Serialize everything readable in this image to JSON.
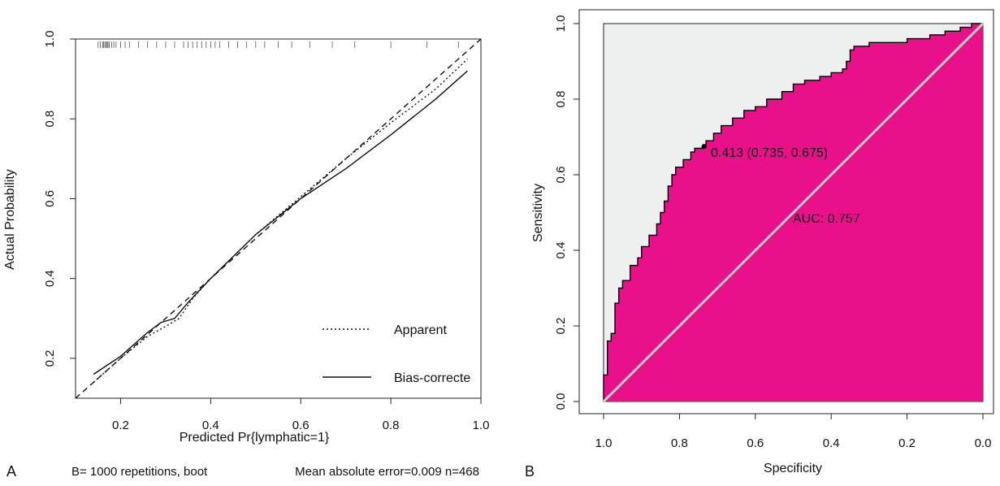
{
  "chart_data": [
    {
      "panel_label": "A",
      "type": "line",
      "xlabel": "Predicted Pr{lymphatic=1}",
      "ylabel": "Actual Probability",
      "footer_left": "B= 1000 repetitions, boot",
      "footer_right": "Mean absolute error=0.009 n=468",
      "xlim": [
        0.1,
        1.0
      ],
      "ylim": [
        0.1,
        1.0
      ],
      "x_ticks": [
        "0.2",
        "0.4",
        "0.6",
        "0.8",
        "1.0"
      ],
      "y_ticks": [
        "0.2",
        "0.4",
        "0.6",
        "0.8",
        "1.0"
      ],
      "grid": false,
      "legend_position": "bottom-right",
      "series": [
        {
          "name": "Apparent",
          "style": "dotted",
          "x": [
            0.14,
            0.2,
            0.26,
            0.3,
            0.33,
            0.36,
            0.4,
            0.5,
            0.6,
            0.7,
            0.8,
            0.9,
            0.97
          ],
          "y": [
            0.14,
            0.2,
            0.255,
            0.28,
            0.3,
            0.35,
            0.4,
            0.51,
            0.605,
            0.7,
            0.79,
            0.875,
            0.95
          ]
        },
        {
          "name": "Bias-correcte",
          "style": "solid",
          "x": [
            0.14,
            0.2,
            0.26,
            0.29,
            0.32,
            0.35,
            0.4,
            0.5,
            0.6,
            0.7,
            0.8,
            0.9,
            0.97
          ],
          "y": [
            0.16,
            0.205,
            0.265,
            0.29,
            0.3,
            0.34,
            0.4,
            0.51,
            0.6,
            0.675,
            0.76,
            0.85,
            0.92
          ]
        },
        {
          "name": "",
          "style": "dashed",
          "x": [
            0.1,
            1.0
          ],
          "y": [
            0.1,
            1.0
          ]
        }
      ],
      "rug_x": [
        0.15,
        0.155,
        0.16,
        0.162,
        0.165,
        0.168,
        0.17,
        0.172,
        0.175,
        0.18,
        0.185,
        0.19,
        0.2,
        0.21,
        0.22,
        0.24,
        0.26,
        0.28,
        0.3,
        0.32,
        0.34,
        0.35,
        0.36,
        0.37,
        0.38,
        0.39,
        0.4,
        0.41,
        0.42,
        0.44,
        0.46,
        0.48,
        0.5,
        0.52,
        0.55,
        0.58,
        0.62,
        0.67,
        0.72,
        0.8,
        0.88,
        0.95
      ]
    },
    {
      "panel_label": "B",
      "type": "line",
      "xlabel": "Specificity",
      "ylabel": "Sensitivity",
      "xlim": [
        1.0,
        0.0
      ],
      "ylim": [
        0.0,
        1.0
      ],
      "x_ticks": [
        "1.0",
        "0.8",
        "0.6",
        "0.4",
        "0.2",
        "0.0"
      ],
      "y_ticks": [
        "0.0",
        "0.2",
        "0.4",
        "0.6",
        "0.8",
        "1.0"
      ],
      "grid": false,
      "annotations": {
        "auc": "AUC: 0.757",
        "threshold": "0.413 (0.735, 0.675)"
      },
      "threshold_point": {
        "specificity": 0.735,
        "sensitivity": 0.675
      },
      "colors": {
        "auc_fill": "#e8118a",
        "panel_fill": "#eef0f0",
        "diagonal": "#cccccc"
      },
      "series": [
        {
          "name": "",
          "specificity": [
            1.0,
            1.0,
            0.99,
            0.99,
            0.98,
            0.98,
            0.97,
            0.97,
            0.96,
            0.96,
            0.95,
            0.95,
            0.93,
            0.93,
            0.91,
            0.91,
            0.9,
            0.9,
            0.88,
            0.88,
            0.86,
            0.86,
            0.85,
            0.85,
            0.84,
            0.84,
            0.83,
            0.83,
            0.82,
            0.82,
            0.81,
            0.81,
            0.79,
            0.79,
            0.77,
            0.77,
            0.76,
            0.76,
            0.74,
            0.74,
            0.73,
            0.73,
            0.71,
            0.71,
            0.69,
            0.69,
            0.66,
            0.66,
            0.63,
            0.63,
            0.6,
            0.6,
            0.57,
            0.57,
            0.53,
            0.53,
            0.5,
            0.5,
            0.47,
            0.47,
            0.43,
            0.43,
            0.4,
            0.4,
            0.37,
            0.37,
            0.36,
            0.36,
            0.35,
            0.35,
            0.34,
            0.34,
            0.3,
            0.3,
            0.2,
            0.2,
            0.14,
            0.14,
            0.1,
            0.1,
            0.06,
            0.06,
            0.03,
            0.03,
            0.0
          ],
          "sensitivity": [
            0.0,
            0.07,
            0.07,
            0.16,
            0.16,
            0.18,
            0.18,
            0.26,
            0.26,
            0.3,
            0.3,
            0.32,
            0.32,
            0.36,
            0.36,
            0.38,
            0.38,
            0.41,
            0.41,
            0.44,
            0.44,
            0.47,
            0.47,
            0.5,
            0.5,
            0.53,
            0.53,
            0.57,
            0.57,
            0.6,
            0.6,
            0.62,
            0.62,
            0.64,
            0.64,
            0.66,
            0.66,
            0.67,
            0.67,
            0.675,
            0.675,
            0.69,
            0.69,
            0.71,
            0.71,
            0.73,
            0.73,
            0.75,
            0.75,
            0.77,
            0.77,
            0.78,
            0.78,
            0.8,
            0.8,
            0.82,
            0.82,
            0.84,
            0.84,
            0.85,
            0.85,
            0.86,
            0.86,
            0.87,
            0.87,
            0.88,
            0.88,
            0.9,
            0.9,
            0.93,
            0.93,
            0.94,
            0.94,
            0.95,
            0.95,
            0.96,
            0.96,
            0.97,
            0.97,
            0.98,
            0.98,
            0.99,
            0.99,
            1.0,
            1.0
          ]
        }
      ]
    }
  ]
}
